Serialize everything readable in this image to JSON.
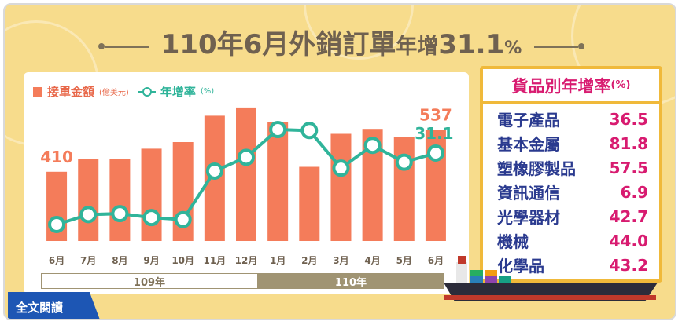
{
  "title": {
    "main": "110年6月外銷訂單",
    "sub": "年增",
    "value": "31.1",
    "percent": "%"
  },
  "chart_data": {
    "type": "bar",
    "categories": [
      "6月",
      "7月",
      "8月",
      "9月",
      "10月",
      "11月",
      "12月",
      "1月",
      "2月",
      "3月",
      "4月",
      "5月",
      "6月"
    ],
    "series": [
      {
        "name": "接單金額",
        "type": "bar",
        "values": [
          410,
          450,
          450,
          480,
          500,
          580,
          605,
          560,
          425,
          525,
          540,
          515,
          537
        ]
      },
      {
        "name": "年增率",
        "type": "line",
        "values": [
          -5.0,
          0.0,
          0.5,
          -1.5,
          -2.5,
          22.0,
          29.0,
          43.0,
          42.5,
          23.5,
          35.0,
          26.5,
          31.1
        ]
      }
    ],
    "legend": [
      {
        "label": "接單金額",
        "unit": "(億美元)"
      },
      {
        "label": "年增率",
        "unit": "(%)"
      }
    ],
    "data_labels": [
      {
        "series": 0,
        "index": 0,
        "text": "410"
      },
      {
        "series": 0,
        "index": 12,
        "text": "537"
      },
      {
        "series": 1,
        "index": 12,
        "text": "31.1"
      }
    ],
    "year_groups": [
      {
        "label": "109年",
        "start": 0,
        "end": 6
      },
      {
        "label": "110年",
        "start": 7,
        "end": 12
      }
    ],
    "colors": {
      "bar": "#f47c5a",
      "line": "#30b49a"
    }
  },
  "table": {
    "title": "貨品別年增率",
    "unit": "(%)",
    "rows": [
      {
        "category": "電子產品",
        "value": "36.5"
      },
      {
        "category": "基本金屬",
        "value": "81.8"
      },
      {
        "category": "塑橡膠製品",
        "value": "57.5"
      },
      {
        "category": "資訊通信",
        "value": "6.9"
      },
      {
        "category": "光學器材",
        "value": "42.7"
      },
      {
        "category": "機械",
        "value": "44.0"
      },
      {
        "category": "化學品",
        "value": "43.2"
      }
    ]
  },
  "read_button": {
    "label": "全文閱讀"
  },
  "colors": {
    "background": "#f7dc8c",
    "accent_pink": "#d81b70",
    "accent_blue": "#1d56b4",
    "panel_border": "#f0b93a"
  }
}
